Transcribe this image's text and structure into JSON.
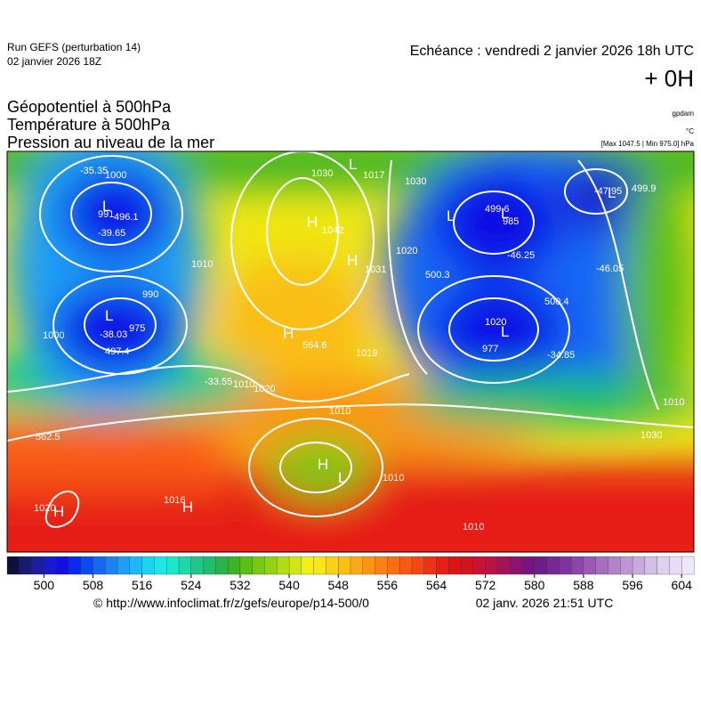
{
  "header": {
    "run": "Run GEFS (perturbation 14)",
    "run_date": "02 janvier 2026 18Z",
    "echeance": "Echéance : vendredi 2 janvier 2026 18h UTC",
    "lead": "+ 0H",
    "titles": [
      "Géopotentiel à 500hPa",
      "Température à 500hPa",
      "Pression au niveau de la mer"
    ],
    "units": [
      "gpdam",
      "°C",
      "[Max 1047.5 | Min 975.0] hPa"
    ]
  },
  "map": {
    "labels": [
      "-35.35",
      "1000",
      "L",
      "991",
      "496.1",
      "-39.65",
      "1010",
      "990",
      "L",
      "975",
      "-38.03",
      "497.4",
      "1000",
      "H",
      "1042",
      "1030",
      "H",
      "1031",
      "H",
      "564.6",
      "1020",
      "1010",
      "L",
      "1017",
      "1030",
      "1020",
      "L",
      "499.6",
      "L",
      "985",
      "500.3",
      "-46.25",
      "-47.95",
      "L",
      "499.9",
      "-46.05",
      "1020",
      "L",
      "977",
      "500.4",
      "-34.85",
      "-33.55",
      "1010",
      "1010",
      "1030",
      "H",
      "L",
      "562.5",
      "1010",
      "1010",
      "1020",
      "H",
      "1016",
      "H",
      "1019"
    ]
  },
  "colorbar": {
    "range": [
      494,
      606
    ],
    "ticks": [
      500,
      508,
      516,
      524,
      532,
      540,
      548,
      556,
      564,
      572,
      580,
      588,
      596,
      604
    ],
    "colors": [
      "#10103a",
      "#1a1a6e",
      "#1c1c9c",
      "#1a1acc",
      "#1010e6",
      "#0a28f0",
      "#0a4af5",
      "#1466f5",
      "#1a82f5",
      "#1e9ef5",
      "#1eb8f5",
      "#1ed2f0",
      "#1ee6e6",
      "#1ee6c8",
      "#1ed8a8",
      "#1ec88a",
      "#1ebe6e",
      "#28b44a",
      "#3cb428",
      "#5abe14",
      "#78c814",
      "#96d214",
      "#b4dc14",
      "#d2e614",
      "#f0f014",
      "#fae614",
      "#fad214",
      "#fabe14",
      "#faaa14",
      "#fa9614",
      "#fa8214",
      "#fa6e14",
      "#fa5a14",
      "#f54614",
      "#f03214",
      "#e61e14",
      "#dc1414",
      "#d2141e",
      "#c81432",
      "#b41446",
      "#a0145a",
      "#8c146e",
      "#781482",
      "#6e1e8c",
      "#782896",
      "#8232a0",
      "#8c46aa",
      "#9a5ab4",
      "#a86ebe",
      "#b482c8",
      "#be96d2",
      "#c8aadc",
      "#d2bee6",
      "#dcd2f0",
      "#e6dcf5",
      "#f0e6fa"
    ]
  },
  "footer": {
    "source": "© http://www.infoclimat.fr/z/gefs/europe/p14-500/0",
    "generated": "02 janv. 2026 21:51 UTC"
  }
}
